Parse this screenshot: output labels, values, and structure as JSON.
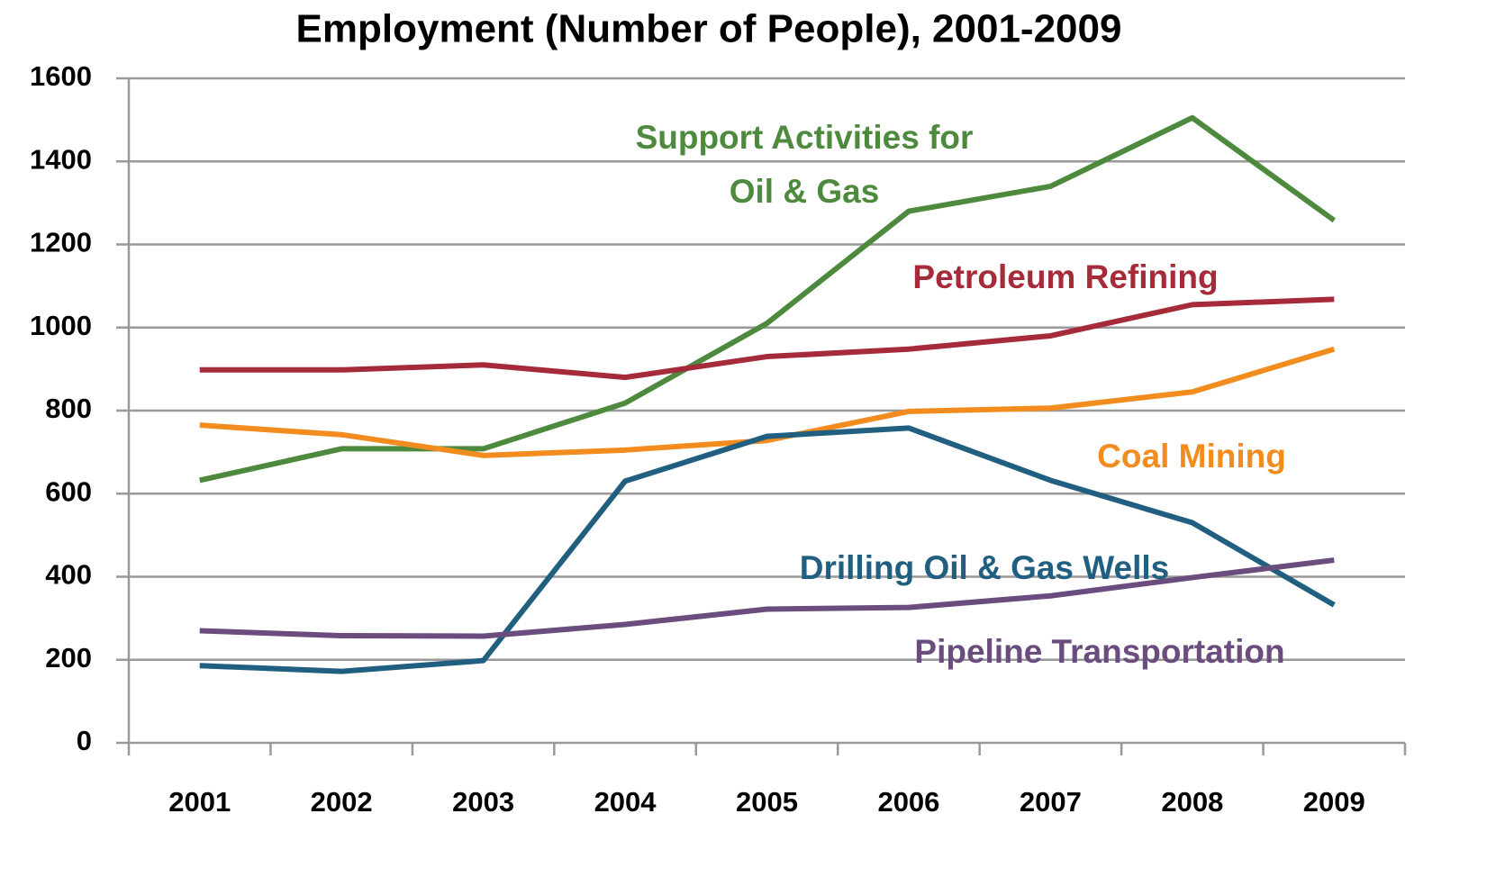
{
  "chart_data": {
    "type": "line",
    "title": "Employment (Number of People), 2001-2009",
    "categories": [
      "2001",
      "2002",
      "2003",
      "2004",
      "2005",
      "2006",
      "2007",
      "2008",
      "2009"
    ],
    "series": [
      {
        "name": "Support Activities for Oil & Gas",
        "color": "#4e8a3e",
        "values": [
          632,
          708,
          708,
          818,
          1010,
          1280,
          1340,
          1505,
          1258
        ]
      },
      {
        "name": "Petroleum Refining",
        "color": "#a52a3a",
        "values": [
          898,
          898,
          910,
          880,
          930,
          948,
          980,
          1055,
          1068
        ]
      },
      {
        "name": "Coal Mining",
        "color": "#f28c1e",
        "values": [
          765,
          742,
          692,
          705,
          728,
          798,
          806,
          845,
          948
        ]
      },
      {
        "name": "Drilling Oil & Gas Wells",
        "color": "#215f80",
        "values": [
          186,
          172,
          198,
          630,
          738,
          758,
          632,
          530,
          332
        ]
      },
      {
        "name": "Pipeline Transportation",
        "color": "#6b4c7e",
        "values": [
          270,
          258,
          257,
          285,
          322,
          326,
          354,
          398,
          440
        ]
      }
    ],
    "ylim": [
      0,
      1600
    ],
    "yticks": [
      0,
      200,
      400,
      600,
      800,
      1000,
      1200,
      1400,
      1600
    ],
    "grid": true
  }
}
